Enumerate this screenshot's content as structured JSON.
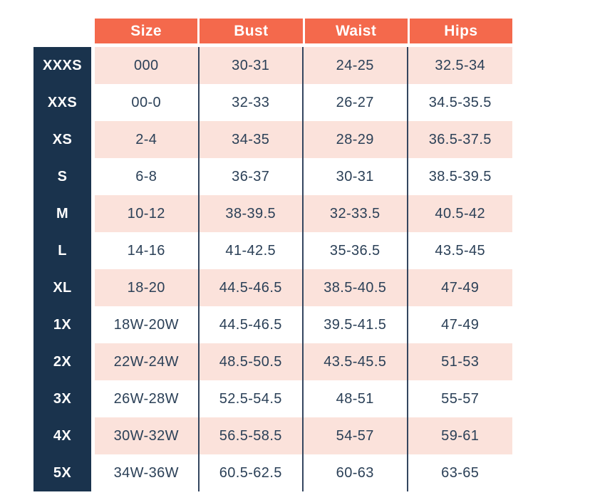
{
  "colors": {
    "header_bg": "#f4694c",
    "header_text": "#ffffff",
    "stripe_pink": "#fbe2db",
    "stripe_white": "#ffffff",
    "sidebar_bg": "#1a334d",
    "sidebar_text": "#ffffff",
    "cell_text": "#2b4057",
    "divider": "#34465f"
  },
  "chart_data": {
    "type": "table",
    "columns": [
      "Size",
      "Bust",
      "Waist",
      "Hips"
    ],
    "rows": [
      {
        "label": "XXXS",
        "size": "000",
        "bust": "30-31",
        "waist": "24-25",
        "hips": "32.5-34"
      },
      {
        "label": "XXS",
        "size": "00-0",
        "bust": "32-33",
        "waist": "26-27",
        "hips": "34.5-35.5"
      },
      {
        "label": "XS",
        "size": "2-4",
        "bust": "34-35",
        "waist": "28-29",
        "hips": "36.5-37.5"
      },
      {
        "label": "S",
        "size": "6-8",
        "bust": "36-37",
        "waist": "30-31",
        "hips": "38.5-39.5"
      },
      {
        "label": "M",
        "size": "10-12",
        "bust": "38-39.5",
        "waist": "32-33.5",
        "hips": "40.5-42"
      },
      {
        "label": "L",
        "size": "14-16",
        "bust": "41-42.5",
        "waist": "35-36.5",
        "hips": "43.5-45"
      },
      {
        "label": "XL",
        "size": "18-20",
        "bust": "44.5-46.5",
        "waist": "38.5-40.5",
        "hips": "47-49"
      },
      {
        "label": "1X",
        "size": "18W-20W",
        "bust": "44.5-46.5",
        "waist": "39.5-41.5",
        "hips": "47-49"
      },
      {
        "label": "2X",
        "size": "22W-24W",
        "bust": "48.5-50.5",
        "waist": "43.5-45.5",
        "hips": "51-53"
      },
      {
        "label": "3X",
        "size": "26W-28W",
        "bust": "52.5-54.5",
        "waist": "48-51",
        "hips": "55-57"
      },
      {
        "label": "4X",
        "size": "30W-32W",
        "bust": "56.5-58.5",
        "waist": "54-57",
        "hips": "59-61"
      },
      {
        "label": "5X",
        "size": "34W-36W",
        "bust": "60.5-62.5",
        "waist": "60-63",
        "hips": "63-65"
      }
    ]
  }
}
